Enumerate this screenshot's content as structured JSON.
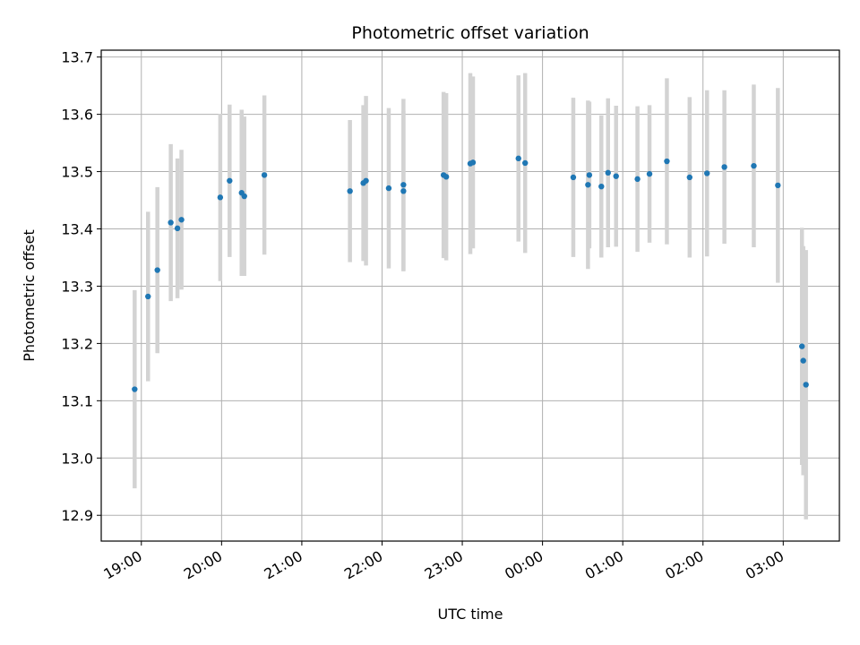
{
  "chart_data": {
    "type": "scatter",
    "title": "Photometric offset variation",
    "xlabel": "UTC time",
    "ylabel": "Photometric offset",
    "grid": true,
    "x_ticks": [
      "19:00",
      "20:00",
      "21:00",
      "22:00",
      "23:00",
      "00:00",
      "01:00",
      "02:00",
      "03:00"
    ],
    "x_tick_times": [
      "18:00+60",
      "20:00",
      "21:00",
      "22:00",
      "23:00",
      "24:00",
      "25:00",
      "26:00",
      "27:00"
    ],
    "x_range": [
      "18:30",
      "27:42"
    ],
    "y_ticks": [
      "12.9",
      "13.0",
      "13.1",
      "13.2",
      "13.3",
      "13.4",
      "13.5",
      "13.6",
      "13.7"
    ],
    "ylim": [
      12.855,
      13.712
    ],
    "colors": {
      "point": "#1f77b4",
      "errorbar": "#d3d3d3",
      "grid": "#b0b0b0"
    },
    "series": [
      {
        "x": [
          "18:55",
          "19:05",
          "19:12",
          "19:22",
          "19:27",
          "19:30",
          "19:59",
          "20:06",
          "20:15",
          "20:17",
          "20:32",
          "21:36",
          "21:46",
          "21:48",
          "22:05",
          "22:16",
          "22:16",
          "22:46",
          "22:48",
          "23:06",
          "23:08",
          "23:42",
          "23:47",
          "24:23",
          "24:34",
          "24:35",
          "24:44",
          "24:49",
          "24:55",
          "25:11",
          "25:20",
          "25:33",
          "25:50",
          "26:03",
          "26:16",
          "26:38",
          "26:56",
          "27:14",
          "27:15",
          "27:17"
        ],
        "y": [
          13.12,
          13.282,
          13.328,
          13.411,
          13.401,
          13.416,
          13.455,
          13.484,
          13.463,
          13.457,
          13.494,
          13.466,
          13.48,
          13.484,
          13.471,
          13.477,
          13.466,
          13.494,
          13.491,
          13.514,
          13.516,
          13.523,
          13.515,
          13.49,
          13.477,
          13.494,
          13.474,
          13.498,
          13.492,
          13.487,
          13.496,
          13.518,
          13.49,
          13.497,
          13.508,
          13.51,
          13.476,
          13.195,
          13.17,
          13.128
        ],
        "err": [
          0.173,
          0.148,
          0.145,
          0.137,
          0.122,
          0.122,
          0.146,
          0.133,
          0.145,
          0.139,
          0.139,
          0.124,
          0.136,
          0.148,
          0.14,
          0.15,
          0.14,
          0.145,
          0.146,
          0.158,
          0.15,
          0.145,
          0.157,
          0.139,
          0.147,
          0.128,
          0.124,
          0.13,
          0.123,
          0.127,
          0.12,
          0.145,
          0.14,
          0.145,
          0.134,
          0.142,
          0.17,
          0.207,
          0.2,
          0.235
        ]
      }
    ]
  }
}
